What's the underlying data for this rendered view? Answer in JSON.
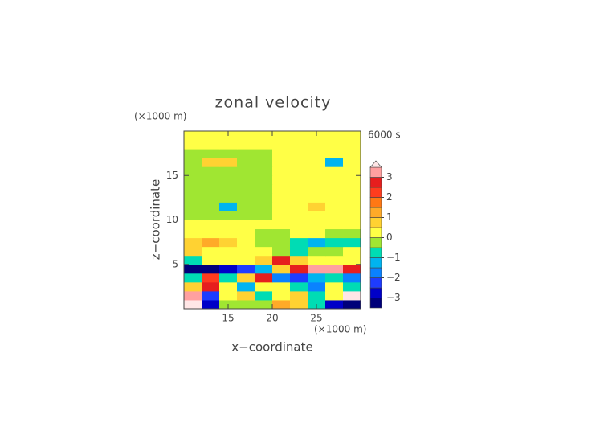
{
  "chart_data": {
    "type": "contour",
    "title": "zonal velocity",
    "x_unit": "(×1000 m)",
    "y_unit": "(×1000 m)",
    "time_label": "6000 s",
    "xlabel": "x−coordinate",
    "ylabel": "z−coordinate",
    "xlim": [
      10,
      30
    ],
    "ylim": [
      0,
      20
    ],
    "xticks": [
      15,
      20,
      25
    ],
    "yticks": [
      5,
      10,
      15
    ],
    "x": [
      11,
      13,
      15,
      17,
      19,
      21,
      23,
      25,
      27,
      29
    ],
    "y": [
      0.5,
      1.5,
      2.5,
      3.5,
      4.5,
      5.5,
      6.5,
      7.5,
      8.5,
      9.5,
      10.5,
      11.5,
      12.5,
      13.5,
      14.5,
      15.5,
      16.5,
      17.5,
      18.5,
      19.5
    ],
    "z": [
      [
        3.6,
        -2.7,
        -0.2,
        -0.2,
        -0.2,
        1.2,
        0.7,
        -0.7,
        -2.7,
        -3.2
      ],
      [
        3.2,
        -2.2,
        0.2,
        0.7,
        -0.7,
        0.2,
        0.7,
        -0.7,
        0.2,
        3.6
      ],
      [
        0.7,
        2.7,
        0.2,
        -1.2,
        0.2,
        0.2,
        -0.7,
        -1.7,
        0.2,
        -0.7
      ],
      [
        -0.7,
        2.2,
        -0.7,
        0.7,
        2.7,
        -1.7,
        -2.2,
        -1.2,
        -0.7,
        -1.7
      ],
      [
        -3.2,
        -3.2,
        -2.7,
        -2.2,
        -1.2,
        0.7,
        2.7,
        3.2,
        3.2,
        2.7
      ],
      [
        -0.7,
        0.2,
        0.2,
        0.2,
        0.7,
        2.7,
        0.7,
        0.2,
        0.2,
        0.2
      ],
      [
        0.7,
        0.2,
        0.2,
        0.2,
        0.2,
        -0.2,
        -0.7,
        -0.2,
        -0.2,
        0.2
      ],
      [
        0.7,
        1.2,
        0.7,
        0.2,
        -0.2,
        -0.2,
        -0.7,
        -1.2,
        -0.7,
        -0.7
      ],
      [
        0.2,
        0.2,
        0.2,
        0.2,
        -0.2,
        -0.2,
        0.2,
        0.2,
        -0.2,
        -0.2
      ],
      [
        0.2,
        0.2,
        0.2,
        0.2,
        0.2,
        0.2,
        0.2,
        0.2,
        0.2,
        0.2
      ],
      [
        -0.2,
        -0.2,
        -0.2,
        -0.2,
        -0.2,
        0.2,
        0.2,
        0.2,
        0.2,
        0.2
      ],
      [
        -0.2,
        -0.2,
        -1.2,
        -0.2,
        -0.2,
        0.2,
        0.2,
        0.7,
        0.2,
        0.2
      ],
      [
        -0.2,
        -0.2,
        -0.2,
        -0.2,
        -0.2,
        0.2,
        0.2,
        0.2,
        0.2,
        0.2
      ],
      [
        -0.2,
        -0.2,
        -0.2,
        -0.2,
        -0.2,
        0.2,
        0.2,
        0.2,
        0.2,
        0.2
      ],
      [
        -0.2,
        -0.2,
        -0.2,
        -0.2,
        -0.2,
        0.2,
        0.2,
        0.2,
        0.2,
        0.2
      ],
      [
        -0.2,
        -0.2,
        -0.2,
        -0.2,
        -0.2,
        0.2,
        0.2,
        0.2,
        0.2,
        0.2
      ],
      [
        -0.2,
        0.7,
        0.6,
        -0.2,
        -0.2,
        0.2,
        0.2,
        0.2,
        -1.2,
        0.2
      ],
      [
        -0.2,
        -0.2,
        -0.2,
        -0.2,
        -0.2,
        0.2,
        0.2,
        0.2,
        0.2,
        0.2
      ],
      [
        0.2,
        0.2,
        0.2,
        0.2,
        0.2,
        0.3,
        0.3,
        0.3,
        0.3,
        0.3
      ],
      [
        0.2,
        0.2,
        0.2,
        0.2,
        0.2,
        0.3,
        0.3,
        0.3,
        0.3,
        0.3
      ]
    ],
    "levels": [
      -3.5,
      -3,
      -2.5,
      -2,
      -1.5,
      -1,
      -0.5,
      0,
      0.5,
      1,
      1.5,
      2,
      2.5,
      3,
      3.5
    ],
    "colors": [
      "#00007a",
      "#0000c8",
      "#1e3cff",
      "#0a82ff",
      "#00b4f0",
      "#00dcb4",
      "#a0e632",
      "#ffff46",
      "#ffd232",
      "#ffaa28",
      "#ff7814",
      "#ff3c1e",
      "#e61e1e",
      "#ffa0a0",
      "#ffe6e6"
    ],
    "cbar_ticks": [
      {
        "value": -3,
        "label": "−3"
      },
      {
        "value": -2,
        "label": "−2"
      },
      {
        "value": -1,
        "label": "−1"
      },
      0,
      1,
      2,
      3
    ]
  }
}
